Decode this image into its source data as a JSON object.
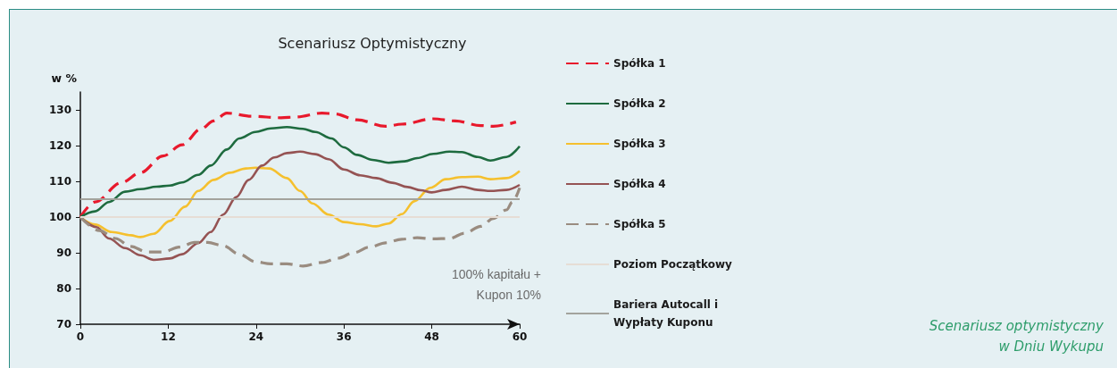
{
  "chart_data": {
    "type": "line",
    "title": "Scenariusz Optymistyczny",
    "ylabel": "w %",
    "xlim": [
      0,
      60
    ],
    "xticks": [
      0,
      12,
      24,
      36,
      48,
      60
    ],
    "ylim": [
      70,
      135
    ],
    "yticks": [
      70,
      80,
      90,
      100,
      110,
      120,
      130
    ],
    "grid": false,
    "legend": "right",
    "marker": "none",
    "series": [
      {
        "name": "Spółka 1",
        "color": "#e8192c",
        "line_style": "dashed",
        "x": [
          0,
          2,
          5.6,
          8.2,
          11.3,
          13.9,
          16.5,
          18.2,
          20,
          23.4,
          27.4,
          29.5,
          33,
          34.7,
          37.8,
          41.7,
          43.9,
          48.2,
          51.2,
          54.7,
          56.4,
          59.5
        ],
        "values": [
          100,
          104.2,
          109.6,
          112.4,
          117.1,
          120.2,
          124.7,
          126.9,
          129.1,
          128.2,
          127.8,
          128,
          129.1,
          128.9,
          127.2,
          125.4,
          126,
          127.5,
          126.9,
          125.6,
          125.4,
          126.6
        ]
      },
      {
        "name": "Spółka 2",
        "color": "#1e6b3f",
        "line_style": "solid",
        "x": [
          0,
          2,
          3.9,
          6.1,
          8.2,
          10.4,
          12.2,
          13.9,
          16.1,
          17.8,
          20,
          21.7,
          23.9,
          26,
          28.2,
          30.4,
          32.1,
          34.3,
          36,
          37.8,
          39.9,
          42.1,
          44.3,
          46,
          48.2,
          50.4,
          52.1,
          54.3,
          56,
          58.2,
          60
        ],
        "values": [
          100,
          101.6,
          104.2,
          107.1,
          107.8,
          108.5,
          108.8,
          109.7,
          111.8,
          114.4,
          118.9,
          122,
          123.8,
          124.8,
          125.2,
          124.7,
          123.8,
          122,
          119.5,
          117.4,
          116,
          115.2,
          115.6,
          116.5,
          117.7,
          118.3,
          118.2,
          116.8,
          115.8,
          116.8,
          119.8
        ]
      },
      {
        "name": "Spółka 3",
        "color": "#f5c02e",
        "line_style": "solid",
        "x": [
          0,
          2,
          4.3,
          6.9,
          8.2,
          10,
          12.2,
          14.3,
          16.1,
          18.2,
          20.4,
          22.6,
          23.9,
          25.8,
          28.2,
          30,
          31.7,
          33.9,
          36,
          38.2,
          40.4,
          42.1,
          43.9,
          45.6,
          47.8,
          49.9,
          52.1,
          54.3,
          56,
          58.2,
          60
        ],
        "values": [
          100,
          97.9,
          95.8,
          94.9,
          94.4,
          95.3,
          98.9,
          102.9,
          107.3,
          110.4,
          112.4,
          113.6,
          113.8,
          113.6,
          110.9,
          107.3,
          103.8,
          100.7,
          98.6,
          98,
          97.4,
          98.2,
          100.8,
          104.4,
          108.2,
          110.6,
          111.2,
          111.3,
          110.6,
          110.9,
          112.9
        ]
      },
      {
        "name": "Spółka 4",
        "color": "#955353",
        "line_style": "solid",
        "x": [
          0,
          2.2,
          3.9,
          6.1,
          8.2,
          10,
          12.2,
          13.9,
          16.1,
          17.8,
          19.5,
          21.3,
          23,
          24.8,
          26.5,
          28.2,
          30,
          32.1,
          33.9,
          36,
          38.2,
          40.4,
          42.6,
          44.7,
          46.5,
          48,
          49.9,
          52.1,
          54.3,
          56,
          58.2,
          60
        ],
        "values": [
          100,
          97.2,
          94,
          91.3,
          89.3,
          88,
          88.4,
          89.6,
          92.7,
          95.8,
          100.7,
          105.6,
          110.4,
          114.4,
          116.7,
          117.9,
          118.3,
          117.6,
          116.2,
          113.3,
          111.7,
          110.9,
          109.6,
          108.4,
          107.5,
          106.9,
          107.6,
          108.5,
          107.6,
          107.3,
          107.6,
          109
        ]
      },
      {
        "name": "Spółka 5",
        "color": "#9a8c80",
        "line_style": "dashed",
        "x": [
          0,
          2.6,
          4.8,
          6.9,
          9.1,
          11.3,
          13.5,
          15.6,
          17.4,
          19.5,
          21.7,
          23.9,
          26,
          28.2,
          30.4,
          33,
          35.2,
          37.3,
          39.5,
          41.7,
          43.9,
          46,
          48.2,
          50.4,
          52.5,
          54.7,
          56.4,
          58.2,
          59,
          60
        ],
        "values": [
          100,
          96.2,
          94,
          91.8,
          90.2,
          90.2,
          91.6,
          92.9,
          92.9,
          92,
          89.6,
          87.5,
          86.9,
          86.9,
          86.3,
          87.3,
          88.5,
          90,
          91.6,
          92.8,
          93.8,
          94.2,
          93.9,
          94,
          95.5,
          97.4,
          99.6,
          102,
          104.2,
          108.2
        ]
      }
    ],
    "ref_lines": [
      {
        "axis": "y",
        "value": 100,
        "label": "Poziom Początkowy",
        "color": "#e6ddd5",
        "line_style": "solid"
      },
      {
        "axis": "y",
        "value": 105,
        "label": "Bariera Autocall i Wypłaty Kuponu",
        "color": "#a3a39c",
        "line_style": "solid"
      }
    ],
    "annotations": [
      "100% kapitału + Kupon 10%",
      "Scenariusz optymistyczny w Dniu Wykupu"
    ]
  }
}
